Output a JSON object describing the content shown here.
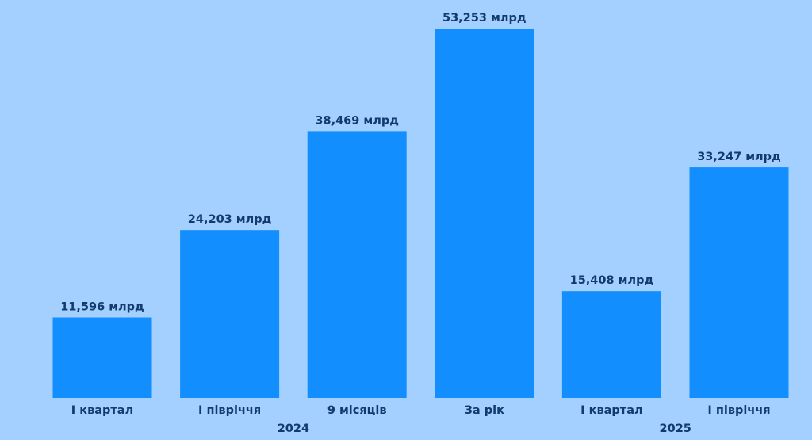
{
  "colors": {
    "background": "#a3d0fe",
    "bar": "#138efe",
    "text": "#123a6e"
  },
  "chart_data": {
    "type": "bar",
    "categories": [
      "І квартал",
      "І півріччя",
      "9 місяців",
      "За рік",
      "І квартал",
      "І півріччя"
    ],
    "values": [
      11.596,
      24.203,
      38.469,
      53.253,
      15.408,
      33.247
    ],
    "data_labels": [
      "11,596 млрд",
      "24,203 млрд",
      "38,469 млрд",
      "53,253 млрд",
      "15,408 млрд",
      "33,247 млрд"
    ],
    "groups": [
      {
        "label": "2024",
        "categories": [
          0,
          1,
          2,
          3
        ]
      },
      {
        "label": "2025",
        "categories": [
          4,
          5
        ]
      }
    ],
    "ylim": [
      0,
      53.253
    ],
    "grid": false,
    "title": "",
    "xlabel": "",
    "ylabel": ""
  }
}
